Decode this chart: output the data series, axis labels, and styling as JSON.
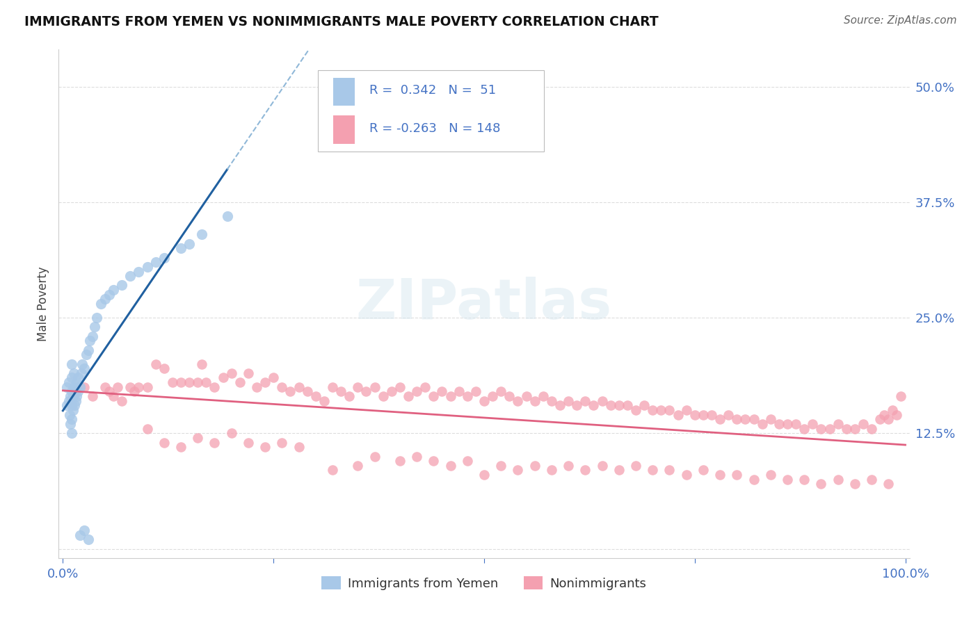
{
  "title": "IMMIGRANTS FROM YEMEN VS NONIMMIGRANTS MALE POVERTY CORRELATION CHART",
  "source": "Source: ZipAtlas.com",
  "ylabel": "Male Poverty",
  "r1": 0.342,
  "n1": 51,
  "r2": -0.263,
  "n2": 148,
  "legend1_label": "Immigrants from Yemen",
  "legend2_label": "Nonimmigrants",
  "color_blue": "#A8C8E8",
  "color_pink": "#F4A0B0",
  "line_blue": "#2060A0",
  "line_pink": "#E06080",
  "axis_color": "#4472C4",
  "watermark": "ZIPatlas",
  "background_color": "#FFFFFF",
  "blue_x": [
    0.005,
    0.005,
    0.007,
    0.007,
    0.008,
    0.009,
    0.009,
    0.01,
    0.01,
    0.01,
    0.01,
    0.01,
    0.01,
    0.012,
    0.012,
    0.013,
    0.013,
    0.014,
    0.015,
    0.015,
    0.016,
    0.016,
    0.018,
    0.018,
    0.02,
    0.022,
    0.023,
    0.025,
    0.028,
    0.03,
    0.032,
    0.035,
    0.038,
    0.04,
    0.045,
    0.05,
    0.055,
    0.06,
    0.07,
    0.08,
    0.09,
    0.1,
    0.11,
    0.12,
    0.14,
    0.15,
    0.165,
    0.195,
    0.02,
    0.025,
    0.03
  ],
  "blue_y": [
    0.155,
    0.175,
    0.16,
    0.18,
    0.145,
    0.135,
    0.165,
    0.125,
    0.14,
    0.155,
    0.17,
    0.185,
    0.2,
    0.15,
    0.165,
    0.175,
    0.19,
    0.155,
    0.16,
    0.175,
    0.165,
    0.18,
    0.17,
    0.185,
    0.175,
    0.19,
    0.2,
    0.195,
    0.21,
    0.215,
    0.225,
    0.23,
    0.24,
    0.25,
    0.265,
    0.27,
    0.275,
    0.28,
    0.285,
    0.295,
    0.3,
    0.305,
    0.31,
    0.315,
    0.325,
    0.33,
    0.34,
    0.36,
    0.015,
    0.02,
    0.01
  ],
  "pink_x": [
    0.015,
    0.025,
    0.035,
    0.05,
    0.055,
    0.06,
    0.065,
    0.07,
    0.08,
    0.085,
    0.09,
    0.1,
    0.11,
    0.12,
    0.13,
    0.14,
    0.15,
    0.16,
    0.165,
    0.17,
    0.18,
    0.19,
    0.2,
    0.21,
    0.22,
    0.23,
    0.24,
    0.25,
    0.26,
    0.27,
    0.28,
    0.29,
    0.3,
    0.31,
    0.32,
    0.33,
    0.34,
    0.35,
    0.36,
    0.37,
    0.38,
    0.39,
    0.4,
    0.41,
    0.42,
    0.43,
    0.44,
    0.45,
    0.46,
    0.47,
    0.48,
    0.49,
    0.5,
    0.51,
    0.52,
    0.53,
    0.54,
    0.55,
    0.56,
    0.57,
    0.58,
    0.59,
    0.6,
    0.61,
    0.62,
    0.63,
    0.64,
    0.65,
    0.66,
    0.67,
    0.68,
    0.69,
    0.7,
    0.71,
    0.72,
    0.73,
    0.74,
    0.75,
    0.76,
    0.77,
    0.78,
    0.79,
    0.8,
    0.81,
    0.82,
    0.83,
    0.84,
    0.85,
    0.86,
    0.87,
    0.88,
    0.89,
    0.9,
    0.91,
    0.92,
    0.93,
    0.94,
    0.95,
    0.96,
    0.97,
    0.975,
    0.98,
    0.985,
    0.99,
    0.995,
    0.32,
    0.35,
    0.37,
    0.4,
    0.42,
    0.44,
    0.46,
    0.48,
    0.5,
    0.52,
    0.54,
    0.56,
    0.58,
    0.6,
    0.62,
    0.64,
    0.66,
    0.68,
    0.7,
    0.72,
    0.74,
    0.76,
    0.78,
    0.8,
    0.82,
    0.84,
    0.86,
    0.88,
    0.9,
    0.92,
    0.94,
    0.96,
    0.98,
    0.1,
    0.12,
    0.14,
    0.16,
    0.18,
    0.2,
    0.22,
    0.24,
    0.26,
    0.28
  ],
  "pink_y": [
    0.17,
    0.175,
    0.165,
    0.175,
    0.17,
    0.165,
    0.175,
    0.16,
    0.175,
    0.17,
    0.175,
    0.175,
    0.2,
    0.195,
    0.18,
    0.18,
    0.18,
    0.18,
    0.2,
    0.18,
    0.175,
    0.185,
    0.19,
    0.18,
    0.19,
    0.175,
    0.18,
    0.185,
    0.175,
    0.17,
    0.175,
    0.17,
    0.165,
    0.16,
    0.175,
    0.17,
    0.165,
    0.175,
    0.17,
    0.175,
    0.165,
    0.17,
    0.175,
    0.165,
    0.17,
    0.175,
    0.165,
    0.17,
    0.165,
    0.17,
    0.165,
    0.17,
    0.16,
    0.165,
    0.17,
    0.165,
    0.16,
    0.165,
    0.16,
    0.165,
    0.16,
    0.155,
    0.16,
    0.155,
    0.16,
    0.155,
    0.16,
    0.155,
    0.155,
    0.155,
    0.15,
    0.155,
    0.15,
    0.15,
    0.15,
    0.145,
    0.15,
    0.145,
    0.145,
    0.145,
    0.14,
    0.145,
    0.14,
    0.14,
    0.14,
    0.135,
    0.14,
    0.135,
    0.135,
    0.135,
    0.13,
    0.135,
    0.13,
    0.13,
    0.135,
    0.13,
    0.13,
    0.135,
    0.13,
    0.14,
    0.145,
    0.14,
    0.15,
    0.145,
    0.165,
    0.085,
    0.09,
    0.1,
    0.095,
    0.1,
    0.095,
    0.09,
    0.095,
    0.08,
    0.09,
    0.085,
    0.09,
    0.085,
    0.09,
    0.085,
    0.09,
    0.085,
    0.09,
    0.085,
    0.085,
    0.08,
    0.085,
    0.08,
    0.08,
    0.075,
    0.08,
    0.075,
    0.075,
    0.07,
    0.075,
    0.07,
    0.075,
    0.07,
    0.13,
    0.115,
    0.11,
    0.12,
    0.115,
    0.125,
    0.115,
    0.11,
    0.115,
    0.11
  ]
}
